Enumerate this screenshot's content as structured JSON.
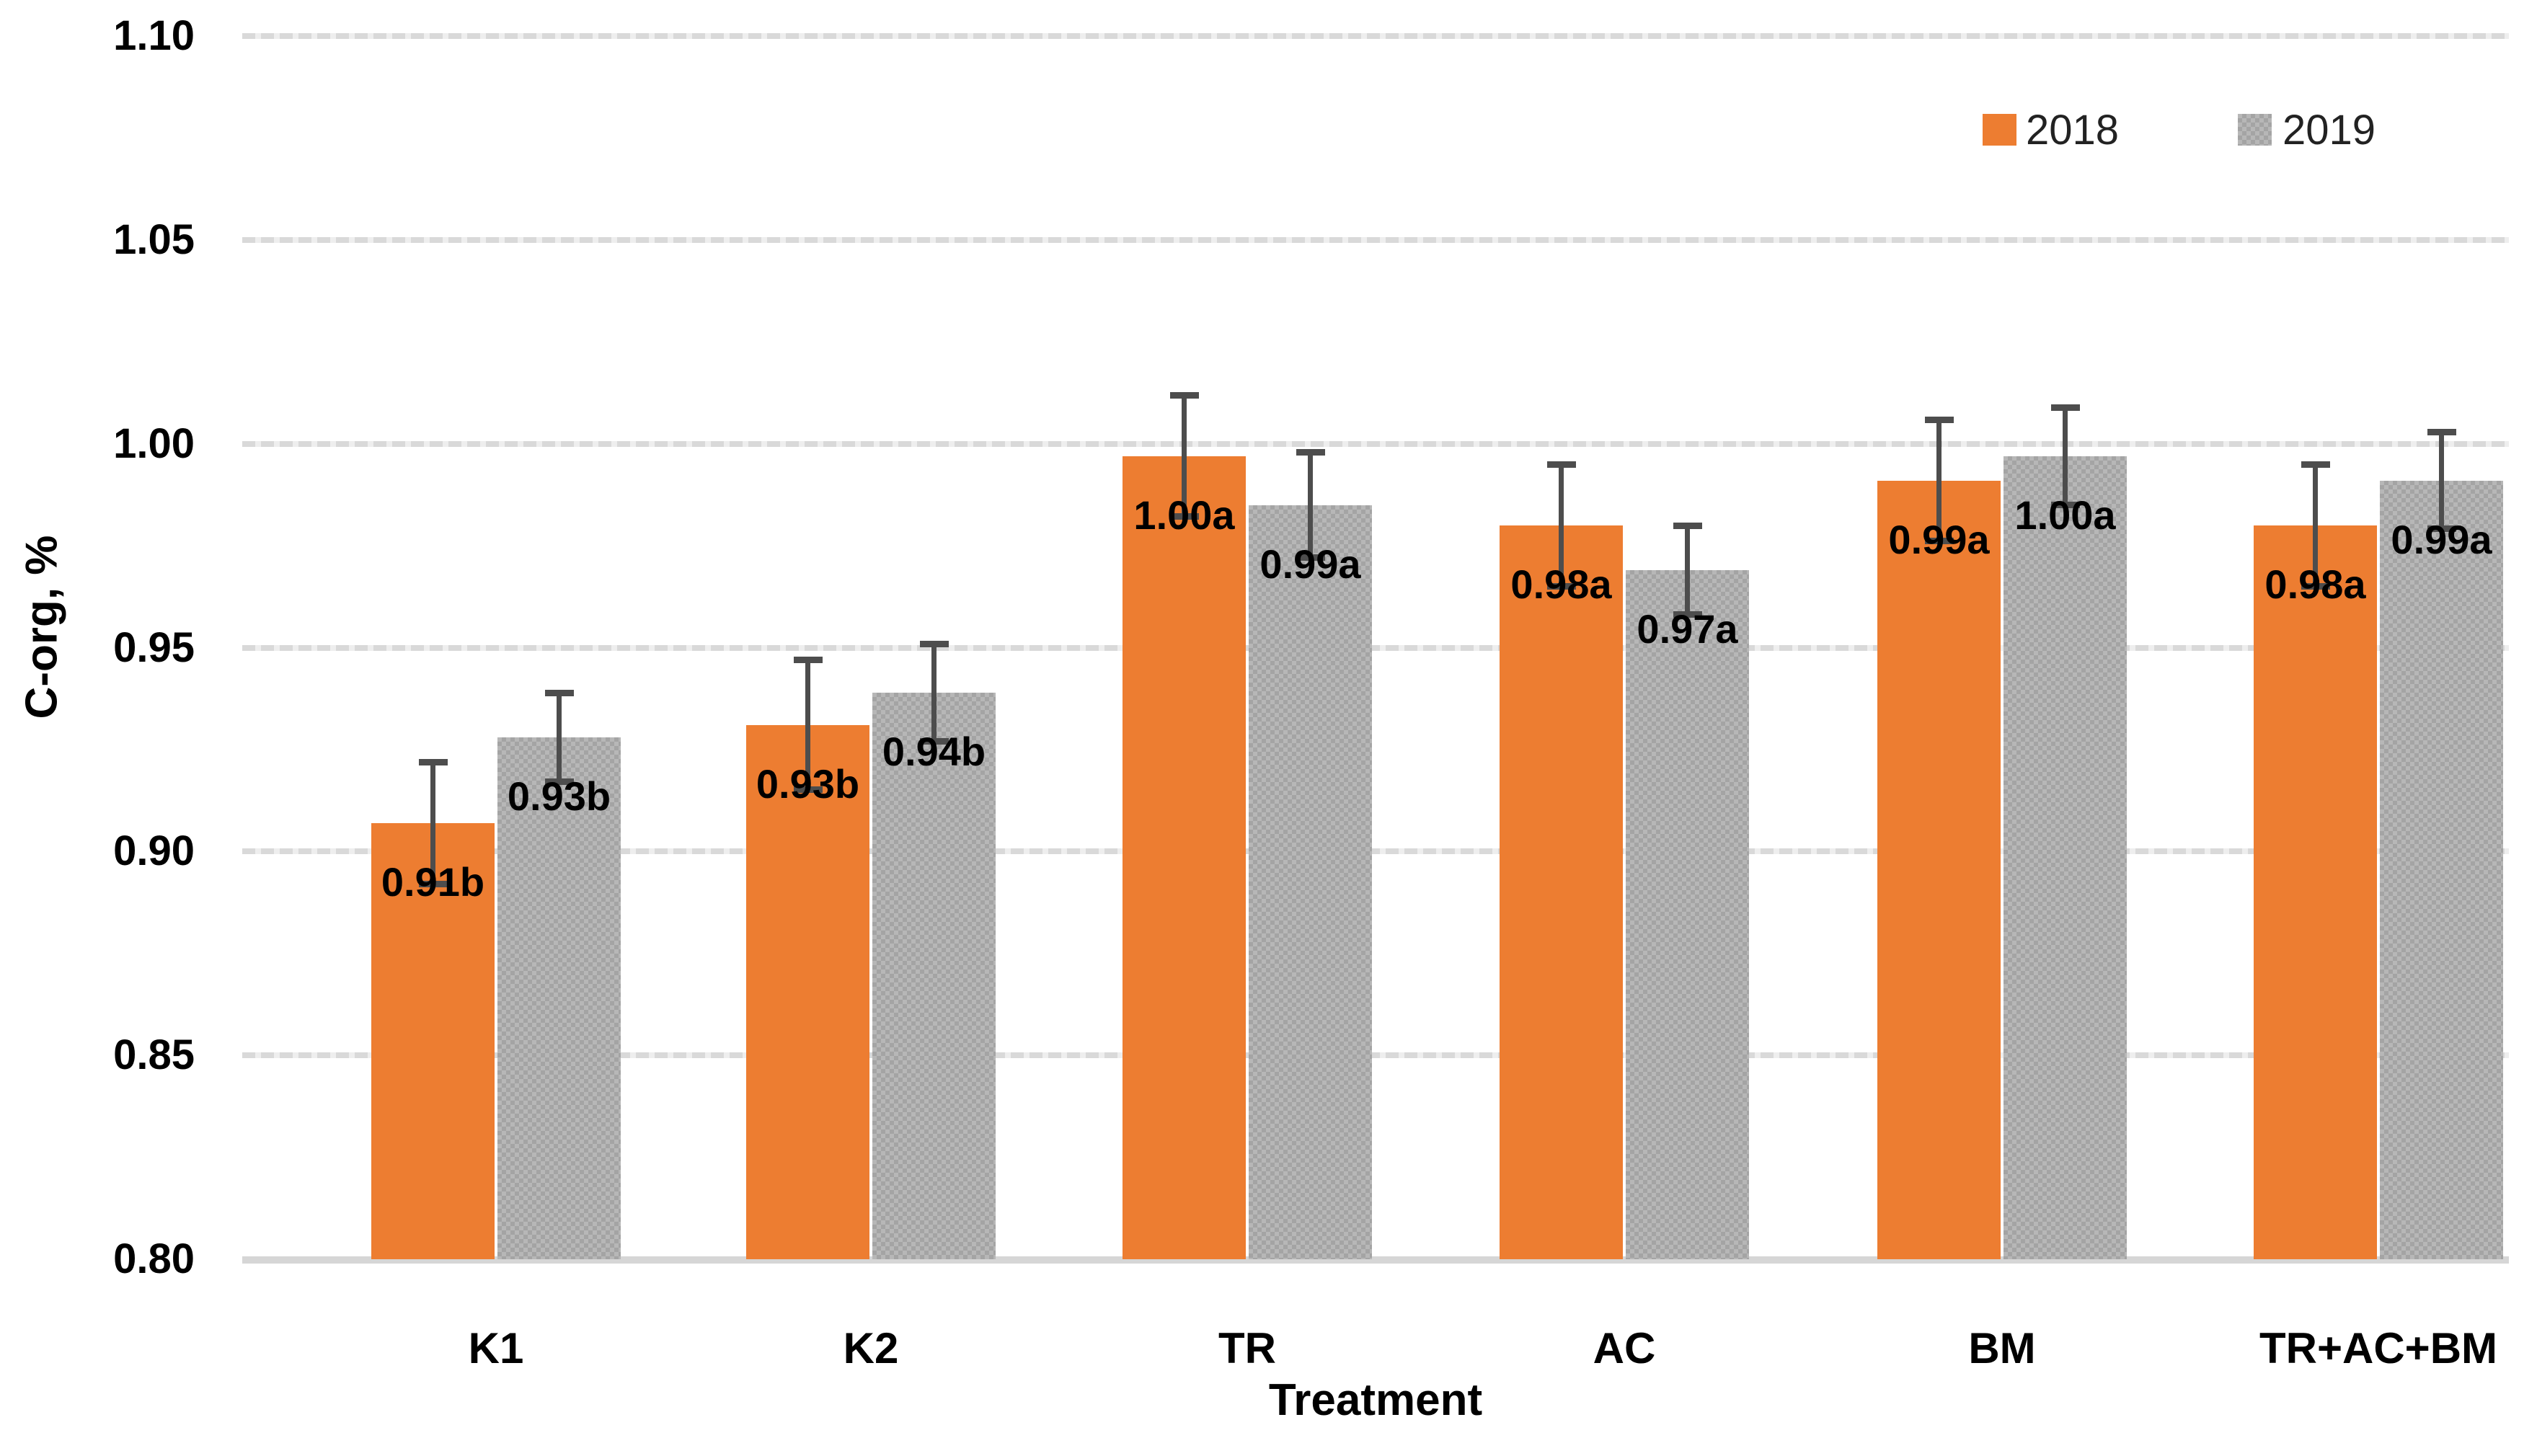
{
  "chart_data": {
    "type": "bar",
    "title": "",
    "categories": [
      "K1",
      "K2",
      "TR",
      "AC",
      "BM",
      "TR+AC+BM"
    ],
    "series": [
      {
        "name": "2018",
        "color": "#ED7D31",
        "values": [
          0.907,
          0.931,
          0.997,
          0.98,
          0.991,
          0.98
        ],
        "labels": [
          "0.91b",
          "0.93b",
          "1.00a",
          "0.98a",
          "0.99a",
          "0.98a"
        ],
        "errors": [
          0.015,
          0.016,
          0.015,
          0.015,
          0.015,
          0.015
        ]
      },
      {
        "name": "2019",
        "color": "#ABABAB",
        "pattern": "checker",
        "values": [
          0.928,
          0.939,
          0.985,
          0.969,
          0.997,
          0.991
        ],
        "labels": [
          "0.93b",
          "0.94b",
          "0.99a",
          "0.97a",
          "1.00a",
          "0.99a"
        ],
        "errors": [
          0.011,
          0.012,
          0.013,
          0.011,
          0.012,
          0.012
        ]
      }
    ],
    "xlabel": "Treatment",
    "ylabel": "C-org, %",
    "ylim": [
      0.8,
      1.1
    ],
    "ytick_step": 0.05,
    "yticks": [
      "1.10",
      "1.05",
      "1.00",
      "0.95",
      "0.90",
      "0.85",
      "0.80"
    ],
    "grid": true,
    "legend_position": "top-right"
  },
  "legend": {
    "items": [
      {
        "label": "2018",
        "color": "#ED7D31"
      },
      {
        "label": "2019",
        "color": "#ABABAB"
      }
    ]
  },
  "colors": {
    "bar_2018": "#ED7D31",
    "bar_2019_base": "#B7B7B7",
    "bar_2019_check": "#A4A4A4",
    "error_bar": "#4D4D4D",
    "gridline": "#D9D9D9",
    "axis_line": "#D6D6D6",
    "text": "#000000"
  }
}
